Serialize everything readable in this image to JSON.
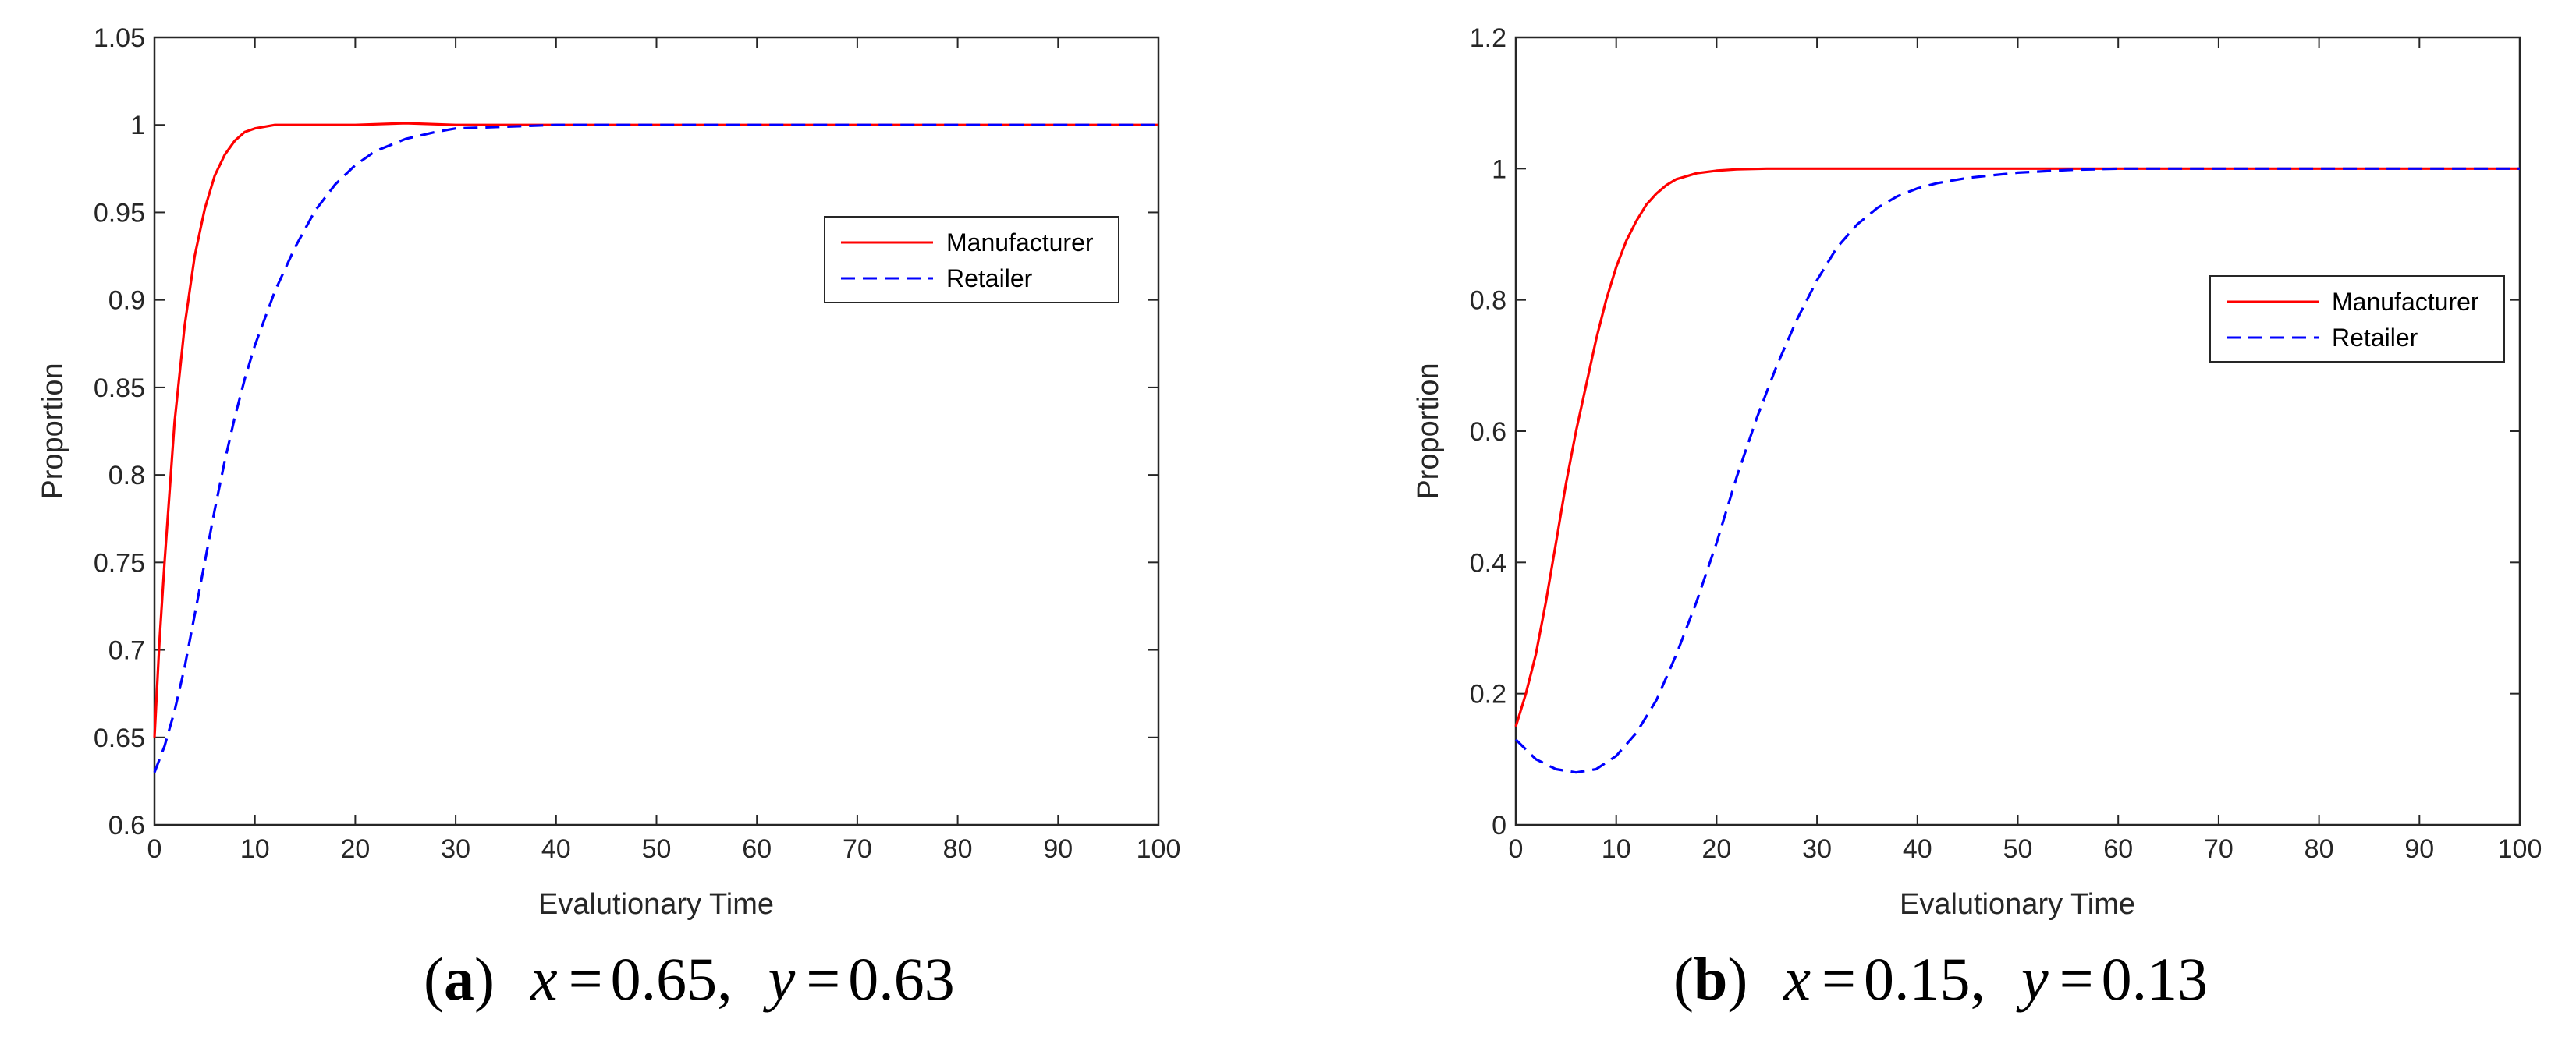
{
  "chart_data": [
    {
      "type": "line",
      "panel": "(a)",
      "caption_letter": "a",
      "caption_x": "0.65",
      "caption_y": "0.63",
      "xlabel": "Evalutionary Time",
      "ylabel": "Proportion",
      "xlim": [
        0,
        100
      ],
      "ylim": [
        0.6,
        1.05
      ],
      "xticks": [
        0,
        10,
        20,
        30,
        40,
        50,
        60,
        70,
        80,
        90,
        100
      ],
      "yticks": [
        0.6,
        0.65,
        0.7,
        0.75,
        0.8,
        0.85,
        0.9,
        0.95,
        1,
        1.05
      ],
      "ytick_labels": [
        "0.6",
        "0.65",
        "0.7",
        "0.75",
        "0.8",
        "0.85",
        "0.9",
        "0.95",
        "1",
        "1.05"
      ],
      "legend_position": "right",
      "series": [
        {
          "name": "Manufacturer",
          "color": "#ff0000",
          "style": "solid",
          "x": [
            0,
            0.5,
            1,
            1.5,
            2,
            3,
            4,
            5,
            6,
            7,
            8,
            9,
            10,
            12,
            15,
            20,
            25,
            30,
            40,
            50,
            60,
            70,
            80,
            90,
            100
          ],
          "y": [
            0.65,
            0.705,
            0.75,
            0.79,
            0.83,
            0.885,
            0.925,
            0.952,
            0.971,
            0.983,
            0.991,
            0.996,
            0.998,
            1.0,
            1.0,
            1.0,
            1.001,
            1.0,
            1.0,
            1.0,
            1.0,
            1.0,
            1.0,
            1.0,
            1.0
          ]
        },
        {
          "name": "Retailer",
          "color": "#0000ff",
          "style": "dashed",
          "x": [
            0,
            1,
            2,
            3,
            4,
            5,
            6,
            7,
            8,
            9,
            10,
            12,
            14,
            16,
            18,
            20,
            22,
            25,
            28,
            30,
            35,
            40,
            45,
            50,
            60,
            70,
            80,
            90,
            100
          ],
          "y": [
            0.63,
            0.645,
            0.665,
            0.69,
            0.72,
            0.75,
            0.78,
            0.808,
            0.833,
            0.855,
            0.874,
            0.905,
            0.93,
            0.951,
            0.966,
            0.977,
            0.985,
            0.992,
            0.996,
            0.998,
            0.999,
            1.0,
            1.0,
            1.0,
            1.0,
            1.0,
            1.0,
            1.0,
            1.0
          ]
        }
      ]
    },
    {
      "type": "line",
      "panel": "(b)",
      "caption_letter": "b",
      "caption_x": "0.15",
      "caption_y": "0.13",
      "xlabel": "Evalutionary Time",
      "ylabel": "Proportion",
      "xlim": [
        0,
        100
      ],
      "ylim": [
        0,
        1.2
      ],
      "xticks": [
        0,
        10,
        20,
        30,
        40,
        50,
        60,
        70,
        80,
        90,
        100
      ],
      "yticks": [
        0,
        0.2,
        0.4,
        0.6,
        0.8,
        1,
        1.2
      ],
      "ytick_labels": [
        "0",
        "0.2",
        "0.4",
        "0.6",
        "0.8",
        "1",
        "1.2"
      ],
      "legend_position": "right",
      "series": [
        {
          "name": "Manufacturer",
          "color": "#ff0000",
          "style": "solid",
          "x": [
            0,
            1,
            2,
            3,
            4,
            5,
            6,
            7,
            8,
            9,
            10,
            11,
            12,
            13,
            14,
            15,
            16,
            18,
            20,
            22,
            25,
            30,
            40,
            50,
            60,
            70,
            80,
            90,
            100
          ],
          "y": [
            0.15,
            0.2,
            0.26,
            0.34,
            0.43,
            0.52,
            0.6,
            0.67,
            0.74,
            0.8,
            0.85,
            0.89,
            0.92,
            0.945,
            0.962,
            0.975,
            0.984,
            0.993,
            0.997,
            0.999,
            1.0,
            1.0,
            1.0,
            1.0,
            1.0,
            1.0,
            1.0,
            1.0,
            1.0
          ]
        },
        {
          "name": "Retailer",
          "color": "#0000ff",
          "style": "dashed",
          "x": [
            0,
            2,
            4,
            6,
            8,
            10,
            12,
            14,
            16,
            18,
            20,
            22,
            24,
            26,
            28,
            30,
            32,
            34,
            36,
            38,
            40,
            42,
            45,
            50,
            55,
            60,
            70,
            80,
            90,
            100
          ],
          "y": [
            0.13,
            0.1,
            0.085,
            0.08,
            0.085,
            0.105,
            0.14,
            0.19,
            0.26,
            0.34,
            0.43,
            0.53,
            0.62,
            0.7,
            0.77,
            0.83,
            0.88,
            0.915,
            0.94,
            0.958,
            0.97,
            0.978,
            0.986,
            0.994,
            0.998,
            1.0,
            1.0,
            1.0,
            1.0,
            1.0
          ]
        }
      ]
    }
  ]
}
